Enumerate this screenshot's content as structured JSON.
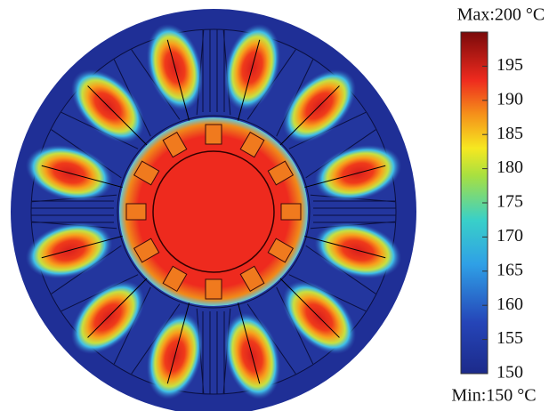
{
  "colorbar": {
    "max_label": "Max:200 °C",
    "min_label": "Min:150 °C",
    "range": [
      150,
      200
    ],
    "ticks": [
      150,
      155,
      160,
      165,
      170,
      175,
      180,
      185,
      190,
      195
    ]
  }
}
